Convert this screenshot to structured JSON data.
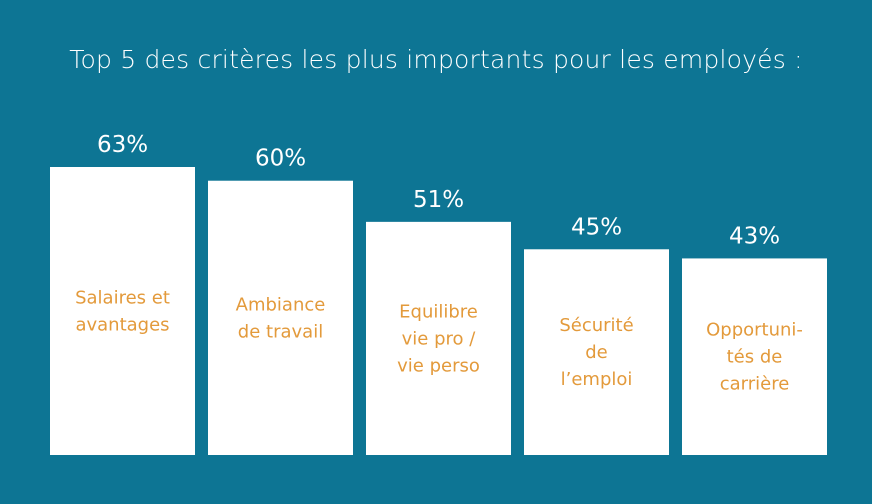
{
  "colors": {
    "background": "#0d7594",
    "bar": "#ffffff",
    "label": "#e39a3b",
    "text": "#ffffff"
  },
  "chart_data": {
    "type": "bar",
    "title": "Top 5 des critères les plus importants pour les employés :",
    "categories": [
      [
        "Salaires et",
        "avantages"
      ],
      [
        "Ambiance",
        "de travail"
      ],
      [
        "Equilibre",
        "vie pro /",
        "vie perso"
      ],
      [
        "Sécurité",
        "de",
        "l’emploi"
      ],
      [
        "Opportuni-",
        "tés de",
        "carrière"
      ]
    ],
    "values": [
      63,
      60,
      51,
      45,
      43
    ],
    "value_labels": [
      "63%",
      "60%",
      "51%",
      "45%",
      "43%"
    ],
    "unit": "%",
    "xlabel": "",
    "ylabel": "",
    "grid": false,
    "axes_visible": false
  }
}
